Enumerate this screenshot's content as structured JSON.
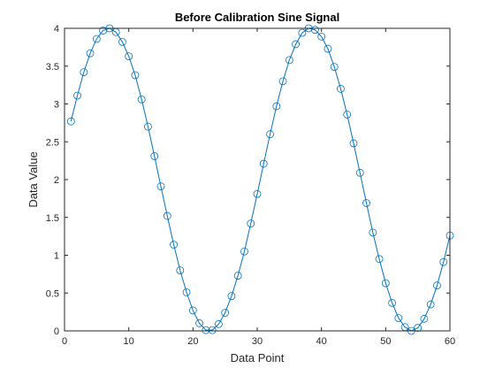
{
  "chart_data": {
    "type": "line",
    "title": "Before Calibration Sine Signal",
    "xlabel": "Data Point",
    "ylabel": "Data Value",
    "xlim": [
      0,
      60
    ],
    "ylim": [
      0,
      4
    ],
    "grid": false,
    "x_ticks": [
      0,
      10,
      20,
      30,
      40,
      50,
      60
    ],
    "x_tick_labels": [
      "0",
      "10",
      "20",
      "30",
      "40",
      "50",
      "60"
    ],
    "y_ticks": [
      0,
      0.5,
      1,
      1.5,
      2,
      2.5,
      3,
      3.5,
      4
    ],
    "y_tick_labels": [
      "0",
      "0.5",
      "1",
      "1.5",
      "2",
      "2.5",
      "3",
      "3.5",
      "4"
    ],
    "colors": {
      "series": "#0072BD",
      "axes": "#262626"
    },
    "marker": "circle",
    "series": [
      {
        "x": [
          1,
          2,
          3,
          4,
          5,
          6,
          7,
          8,
          9,
          10,
          11,
          12,
          13,
          14,
          15,
          16,
          17,
          18,
          19,
          20,
          21,
          22,
          23,
          24,
          25,
          26,
          27,
          28,
          29,
          30,
          31,
          32,
          33,
          34,
          35,
          36,
          37,
          38,
          39,
          40,
          41,
          42,
          43,
          44,
          45,
          46,
          47,
          48,
          49,
          50,
          51,
          52,
          53,
          54,
          55,
          56,
          57,
          58,
          59,
          60
        ],
        "values": [
          2.77,
          3.11,
          3.42,
          3.67,
          3.86,
          3.97,
          4.0,
          3.95,
          3.82,
          3.63,
          3.38,
          3.06,
          2.7,
          2.31,
          1.91,
          1.52,
          1.14,
          0.8,
          0.51,
          0.27,
          0.1,
          0.01,
          0.01,
          0.09,
          0.24,
          0.46,
          0.73,
          1.05,
          1.42,
          1.81,
          2.21,
          2.6,
          2.97,
          3.3,
          3.58,
          3.79,
          3.94,
          4.0,
          3.98,
          3.89,
          3.73,
          3.49,
          3.2,
          2.86,
          2.48,
          2.09,
          1.69,
          1.3,
          0.95,
          0.63,
          0.37,
          0.17,
          0.05,
          0.0,
          0.04,
          0.16,
          0.35,
          0.6,
          0.91,
          1.26
        ]
      }
    ]
  }
}
